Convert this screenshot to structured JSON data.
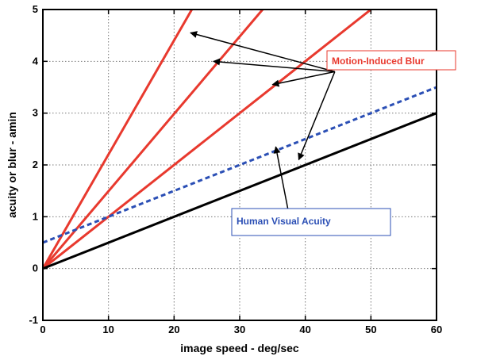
{
  "chart_data": {
    "type": "line",
    "xlabel": "image speed - deg/sec",
    "ylabel": "acuity or blur - amin",
    "xlim": [
      0,
      60
    ],
    "ylim": [
      -1,
      5
    ],
    "xticks": [
      0,
      10,
      20,
      30,
      40,
      50,
      60
    ],
    "yticks": [
      -1,
      0,
      1,
      2,
      3,
      4,
      5
    ],
    "grid": true,
    "series": [
      {
        "x": [
          0,
          22.7
        ],
        "y": [
          0,
          5
        ],
        "color": "#e8392e",
        "style": "solid"
      },
      {
        "x": [
          0,
          33.5
        ],
        "y": [
          0,
          5
        ],
        "color": "#e8392e",
        "style": "solid"
      },
      {
        "x": [
          0,
          50
        ],
        "y": [
          0,
          5
        ],
        "color": "#e8392e",
        "style": "solid"
      },
      {
        "x": [
          0,
          60
        ],
        "y": [
          0.5,
          3.5
        ],
        "color": "#2b4fb5",
        "style": "dashed"
      },
      {
        "x": [
          0,
          60
        ],
        "y": [
          0,
          3
        ],
        "color": "#000000",
        "style": "solid"
      }
    ],
    "annotations": [
      {
        "text": "Motion-Induced Blur",
        "color": "#e8392e",
        "anchor": [
          44.5,
          3.8
        ],
        "targets": [
          [
            22.5,
            4.55
          ],
          [
            26,
            4.0
          ],
          [
            35,
            3.55
          ],
          [
            39,
            2.1
          ]
        ]
      },
      {
        "text": "Human Visual Acuity",
        "color": "#2b4fb5",
        "anchor": [
          37.5,
          1.05
        ],
        "targets": [
          [
            35.5,
            2.35
          ]
        ]
      }
    ]
  }
}
